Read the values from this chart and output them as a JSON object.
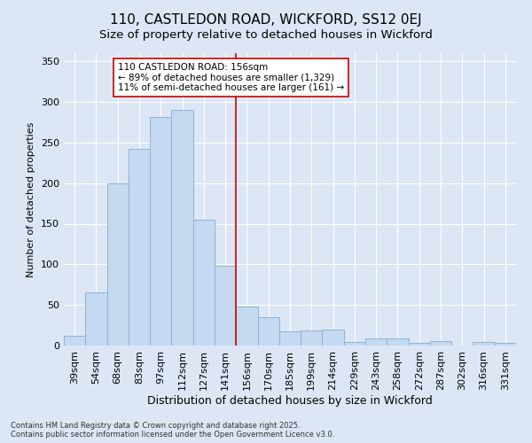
{
  "title": "110, CASTLEDON ROAD, WICKFORD, SS12 0EJ",
  "subtitle": "Size of property relative to detached houses in Wickford",
  "xlabel": "Distribution of detached houses by size in Wickford",
  "ylabel": "Number of detached properties",
  "categories": [
    "39sqm",
    "54sqm",
    "68sqm",
    "83sqm",
    "97sqm",
    "112sqm",
    "127sqm",
    "141sqm",
    "156sqm",
    "170sqm",
    "185sqm",
    "199sqm",
    "214sqm",
    "229sqm",
    "243sqm",
    "258sqm",
    "272sqm",
    "287sqm",
    "302sqm",
    "316sqm",
    "331sqm"
  ],
  "values": [
    12,
    65,
    200,
    242,
    282,
    290,
    155,
    98,
    48,
    35,
    18,
    19,
    20,
    4,
    9,
    9,
    3,
    5,
    0,
    4,
    3
  ],
  "bar_color": "#c5d9f0",
  "bar_edge_color": "#8ab4d9",
  "vline_color": "#cc0000",
  "annotation_text": "110 CASTLEDON ROAD: 156sqm\n← 89% of detached houses are smaller (1,329)\n11% of semi-detached houses are larger (161) →",
  "annotation_box_facecolor": "#ffffff",
  "annotation_box_edgecolor": "#cc0000",
  "ylim": [
    0,
    360
  ],
  "yticks": [
    0,
    50,
    100,
    150,
    200,
    250,
    300,
    350
  ],
  "bg_color": "#dce6f5",
  "title_fontsize": 11,
  "subtitle_fontsize": 9.5,
  "xlabel_fontsize": 9,
  "ylabel_fontsize": 8,
  "tick_fontsize": 8,
  "annot_fontsize": 7.5,
  "footer_fontsize": 6,
  "footer": "Contains HM Land Registry data © Crown copyright and database right 2025.\nContains public sector information licensed under the Open Government Licence v3.0."
}
